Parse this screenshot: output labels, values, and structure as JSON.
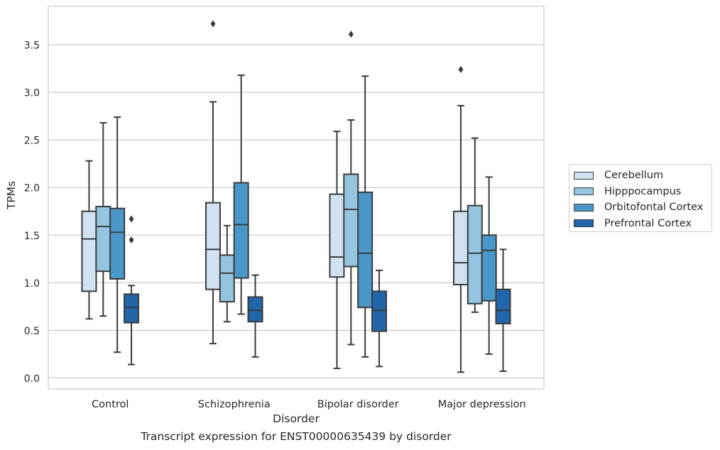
{
  "caption": "Transcript expression for ENST00000635439 by disorder",
  "chart_data": {
    "type": "box",
    "xlabel": "Disorder",
    "ylabel": "TPMs",
    "ylim": [
      -0.08,
      3.93
    ],
    "yticks": [
      "0.0",
      "0.5",
      "1.0",
      "1.5",
      "2.0",
      "2.5",
      "3.0",
      "3.5"
    ],
    "ytick_values": [
      0,
      0.5,
      1.0,
      1.5,
      2.0,
      2.5,
      3.0,
      3.5
    ],
    "grid": "horizontal",
    "legend_position": "right",
    "categories": [
      "Control",
      "Schizophrenia",
      "Bipolar disorder",
      "Major depression"
    ],
    "series": [
      {
        "name": "Cerebellum",
        "color": "#d0e1f2",
        "boxes": [
          {
            "whislo": 0.62,
            "q1": 0.91,
            "med": 1.46,
            "q3": 1.75,
            "whishi": 2.28,
            "fliers": []
          },
          {
            "whislo": 0.36,
            "q1": 0.93,
            "med": 1.35,
            "q3": 1.84,
            "whishi": 2.9,
            "fliers": [
              3.72
            ]
          },
          {
            "whislo": 0.1,
            "q1": 1.06,
            "med": 1.27,
            "q3": 1.93,
            "whishi": 2.59,
            "fliers": []
          },
          {
            "whislo": 0.06,
            "q1": 0.98,
            "med": 1.21,
            "q3": 1.75,
            "whishi": 2.86,
            "fliers": [
              3.24
            ]
          }
        ]
      },
      {
        "name": "Hipppocampus",
        "color": "#94c4df",
        "boxes": [
          {
            "whislo": 0.65,
            "q1": 1.12,
            "med": 1.59,
            "q3": 1.8,
            "whishi": 2.68,
            "fliers": []
          },
          {
            "whislo": 0.59,
            "q1": 0.8,
            "med": 1.1,
            "q3": 1.29,
            "whishi": 1.6,
            "fliers": []
          },
          {
            "whislo": 0.35,
            "q1": 1.17,
            "med": 1.77,
            "q3": 2.14,
            "whishi": 2.71,
            "fliers": [
              3.61
            ]
          },
          {
            "whislo": 0.69,
            "q1": 0.78,
            "med": 1.31,
            "q3": 1.81,
            "whishi": 2.52,
            "fliers": []
          }
        ]
      },
      {
        "name": "Orbitofontal Cortex",
        "color": "#4a98c9",
        "boxes": [
          {
            "whislo": 0.27,
            "q1": 1.04,
            "med": 1.53,
            "q3": 1.78,
            "whishi": 2.74,
            "fliers": []
          },
          {
            "whislo": 0.67,
            "q1": 1.05,
            "med": 1.61,
            "q3": 2.05,
            "whishi": 3.18,
            "fliers": []
          },
          {
            "whislo": 0.22,
            "q1": 0.74,
            "med": 1.31,
            "q3": 1.95,
            "whishi": 3.17,
            "fliers": []
          },
          {
            "whislo": 0.25,
            "q1": 0.81,
            "med": 1.34,
            "q3": 1.5,
            "whishi": 2.11,
            "fliers": []
          }
        ]
      },
      {
        "name": "Prefrontal Cortex",
        "color": "#2165ab",
        "boxes": [
          {
            "whislo": 0.14,
            "q1": 0.58,
            "med": 0.74,
            "q3": 0.88,
            "whishi": 0.97,
            "fliers": [
              1.45,
              1.67
            ]
          },
          {
            "whislo": 0.22,
            "q1": 0.59,
            "med": 0.71,
            "q3": 0.85,
            "whishi": 1.08,
            "fliers": []
          },
          {
            "whislo": 0.12,
            "q1": 0.49,
            "med": 0.71,
            "q3": 0.91,
            "whishi": 1.13,
            "fliers": []
          },
          {
            "whislo": 0.07,
            "q1": 0.57,
            "med": 0.71,
            "q3": 0.93,
            "whishi": 1.35,
            "fliers": []
          }
        ]
      }
    ]
  }
}
